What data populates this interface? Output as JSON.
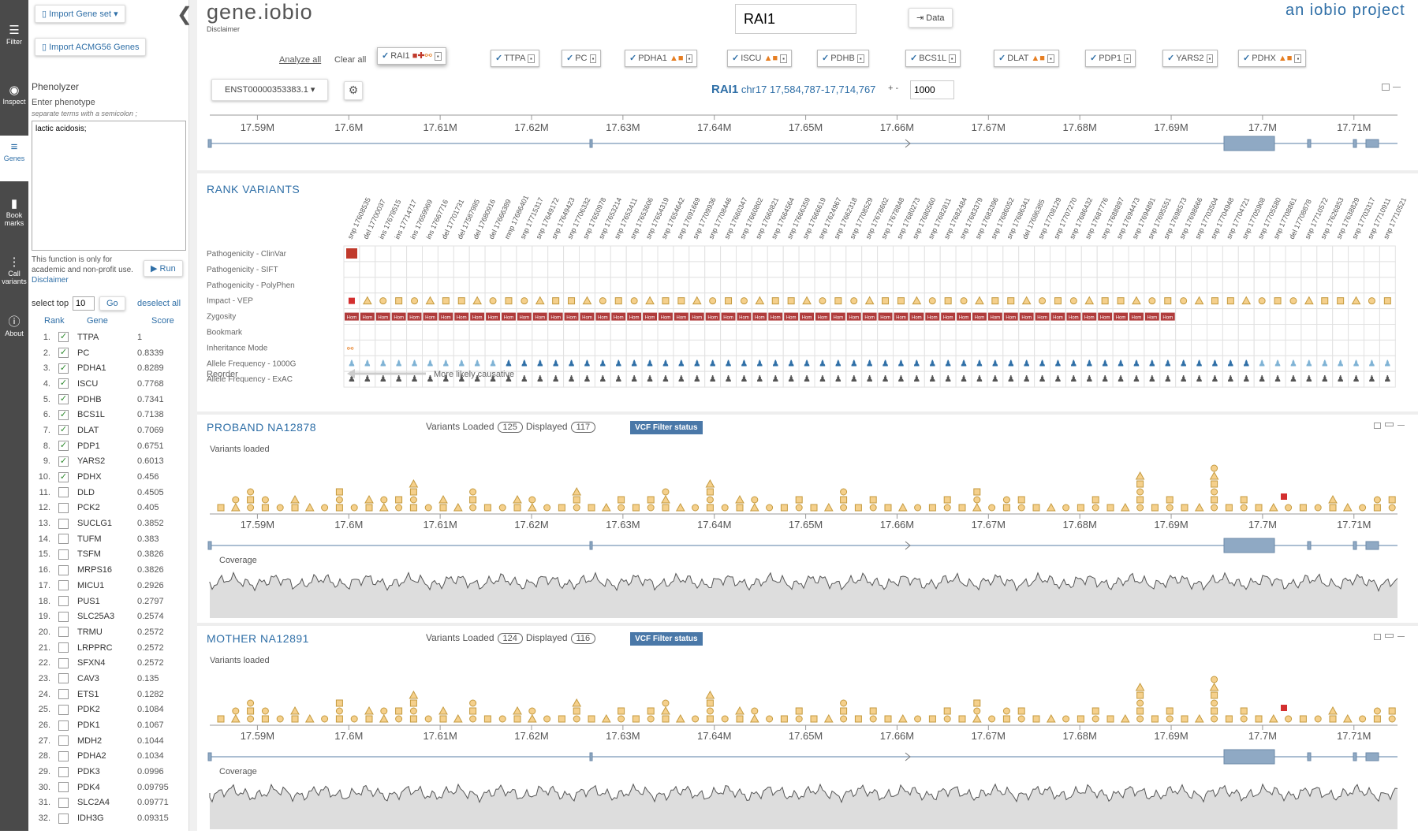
{
  "rail": [
    {
      "icon": "☰",
      "label": "Filter",
      "name": "filter"
    },
    {
      "icon": "◉",
      "label": "Inspect",
      "name": "inspect"
    },
    {
      "icon": "≡",
      "label": "Genes",
      "name": "genes",
      "active": true
    },
    {
      "icon": "▮",
      "label": "Book marks",
      "name": "bookmarks"
    },
    {
      "icon": "⋮",
      "label": "Call variants",
      "name": "call-variants"
    },
    {
      "icon": "ⓘ",
      "label": "About",
      "name": "about"
    }
  ],
  "panel": {
    "import_gene_set": "Import Gene set",
    "import_acmg": "Import ACMG56 Genes",
    "phenolyzer": "Phenolyzer",
    "enter_phenotype": "Enter phenotype",
    "hint": "separate terms with a semicolon ;",
    "phenotype_value": "lactic acidosis;",
    "notice": "This function is only for academic and non-profit use.",
    "disclaimer": "Disclaimer",
    "run": "Run",
    "select_top": "select top",
    "top_value": "10",
    "go": "Go",
    "deselect_all": "deselect all",
    "col_rank": "Rank",
    "col_gene": "Gene",
    "col_score": "Score",
    "genes": [
      {
        "rank": "1.",
        "gene": "TTPA",
        "score": "1",
        "checked": true
      },
      {
        "rank": "2.",
        "gene": "PC",
        "score": "0.8339",
        "checked": true
      },
      {
        "rank": "3.",
        "gene": "PDHA1",
        "score": "0.8289",
        "checked": true
      },
      {
        "rank": "4.",
        "gene": "ISCU",
        "score": "0.7768",
        "checked": true
      },
      {
        "rank": "5.",
        "gene": "PDHB",
        "score": "0.7341",
        "checked": true
      },
      {
        "rank": "6.",
        "gene": "BCS1L",
        "score": "0.7138",
        "checked": true
      },
      {
        "rank": "7.",
        "gene": "DLAT",
        "score": "0.7069",
        "checked": true
      },
      {
        "rank": "8.",
        "gene": "PDP1",
        "score": "0.6751",
        "checked": true
      },
      {
        "rank": "9.",
        "gene": "YARS2",
        "score": "0.6013",
        "checked": true
      },
      {
        "rank": "10.",
        "gene": "PDHX",
        "score": "0.456",
        "checked": true
      },
      {
        "rank": "11.",
        "gene": "DLD",
        "score": "0.4505",
        "checked": false
      },
      {
        "rank": "12.",
        "gene": "PCK2",
        "score": "0.405",
        "checked": false
      },
      {
        "rank": "13.",
        "gene": "SUCLG1",
        "score": "0.3852",
        "checked": false
      },
      {
        "rank": "14.",
        "gene": "TUFM",
        "score": "0.383",
        "checked": false
      },
      {
        "rank": "15.",
        "gene": "TSFM",
        "score": "0.3826",
        "checked": false
      },
      {
        "rank": "16.",
        "gene": "MRPS16",
        "score": "0.3826",
        "checked": false
      },
      {
        "rank": "17.",
        "gene": "MICU1",
        "score": "0.2926",
        "checked": false
      },
      {
        "rank": "18.",
        "gene": "PUS1",
        "score": "0.2797",
        "checked": false
      },
      {
        "rank": "19.",
        "gene": "SLC25A3",
        "score": "0.2574",
        "checked": false
      },
      {
        "rank": "20.",
        "gene": "TRMU",
        "score": "0.2572",
        "checked": false
      },
      {
        "rank": "21.",
        "gene": "LRPPRC",
        "score": "0.2572",
        "checked": false
      },
      {
        "rank": "22.",
        "gene": "SFXN4",
        "score": "0.2572",
        "checked": false
      },
      {
        "rank": "23.",
        "gene": "CAV3",
        "score": "0.135",
        "checked": false
      },
      {
        "rank": "24.",
        "gene": "ETS1",
        "score": "0.1282",
        "checked": false
      },
      {
        "rank": "25.",
        "gene": "PDK2",
        "score": "0.1084",
        "checked": false
      },
      {
        "rank": "26.",
        "gene": "PDK1",
        "score": "0.1067",
        "checked": false
      },
      {
        "rank": "27.",
        "gene": "MDH2",
        "score": "0.1044",
        "checked": false
      },
      {
        "rank": "28.",
        "gene": "PDHA2",
        "score": "0.1034",
        "checked": false
      },
      {
        "rank": "29.",
        "gene": "PDK3",
        "score": "0.0996",
        "checked": false
      },
      {
        "rank": "30.",
        "gene": "PDK4",
        "score": "0.09795",
        "checked": false
      },
      {
        "rank": "31.",
        "gene": "SLC2A4",
        "score": "0.09771",
        "checked": false
      },
      {
        "rank": "32.",
        "gene": "IDH3G",
        "score": "0.09315",
        "checked": false
      }
    ]
  },
  "header": {
    "logo": "gene.iobio",
    "disclaimer": "Disclaimer",
    "search_value": "RAI1",
    "data_button": "Data",
    "brand": "an iobio project",
    "analyze_all": "Analyze all",
    "clear_all": "Clear all"
  },
  "gene_chips": [
    "RAI1",
    "TTPA",
    "PC",
    "PDHA1",
    "ISCU",
    "PDHB",
    "BCS1L",
    "DLAT",
    "PDP1",
    "YARS2",
    "PDHX"
  ],
  "transcript": "ENST00000353383.1",
  "region": {
    "gene": "RAI1",
    "coords": "chr17 17,584,787-17,714,767",
    "pm": "+ -",
    "pad": "1000"
  },
  "axis_ticks": [
    "17.59M",
    "17.6M",
    "17.61M",
    "17.62M",
    "17.63M",
    "17.64M",
    "17.65M",
    "17.66M",
    "17.67M",
    "17.68M",
    "17.69M",
    "17.7M",
    "17.71M"
  ],
  "rank": {
    "title": "RANK VARIANTS",
    "rows": [
      "Pathogenicity - ClinVar",
      "Pathogenicity - SIFT",
      "Pathogenicity - PolyPhen",
      "Impact - VEP",
      "Zygosity",
      "Bookmark",
      "Inheritance Mode",
      "Allele Frequency - 1000G",
      "Allele Frequency - ExAC"
    ],
    "reorder": "Reorder",
    "causative": "More likely causative",
    "zyg_label": "Hom",
    "variants": [
      "snp 17608535",
      "del 17700037",
      "ins 17678515",
      "ins 17714717",
      "ins 17659969",
      "ins 17667716",
      "del 17701731",
      "del 17587985",
      "del 17680916",
      "del 17666389",
      "mnp 17686401",
      "snp 17715317",
      "snp 17649172",
      "snp 17649423",
      "snp 17706332",
      "snp 17650978",
      "snp 17653214",
      "snp 17653411",
      "snp 17653606",
      "snp 17654319",
      "snp 17654642",
      "snp 17691669",
      "snp 17709936",
      "snp 17708446",
      "snp 17660347",
      "snp 17660802",
      "snp 17660821",
      "snp 17664564",
      "snp 17666359",
      "snp 17666619",
      "snp 17624967",
      "snp 17662318",
      "snp 17708529",
      "snp 17678602",
      "snp 17678848",
      "snp 17680273",
      "snp 17680560",
      "snp 17682811",
      "snp 17682484",
      "snp 17683379",
      "snp 17683396",
      "snp 17686052",
      "snp 17686341",
      "del 17686385",
      "snp 17708129",
      "snp 17707270",
      "snp 17686432",
      "snp 17687776",
      "snp 17688897",
      "snp 17694473",
      "snp 17694891",
      "snp 17695551",
      "snp 17698573",
      "snp 17698666",
      "snp 17703504",
      "snp 17704948",
      "snp 17704721",
      "snp 17705908",
      "snp 17705580",
      "snp 17708861",
      "del 17708878",
      "snp 17710572",
      "snp 17626853",
      "snp 17638829",
      "snp 17703317",
      "snp 17710911",
      "snp 17710521"
    ]
  },
  "tracks": [
    {
      "name": "proband",
      "title": "PROBAND NA12878",
      "loaded_label": "Variants Loaded",
      "loaded": "125",
      "displayed_label": "Displayed",
      "displayed": "117",
      "vcf": "VCF Filter status",
      "sub": "Variants loaded",
      "coverage": "Coverage"
    },
    {
      "name": "mother",
      "title": "MOTHER NA12891",
      "loaded_label": "Variants Loaded",
      "loaded": "124",
      "displayed_label": "Displayed",
      "displayed": "116",
      "vcf": "VCF Filter status",
      "sub": "Variants loaded",
      "coverage": "Coverage"
    }
  ],
  "colors": {
    "accent": "#2f6fa7",
    "variant": "#f5d08c",
    "variant_stroke": "#c49a3f",
    "exon": "#8fa9c4",
    "hom": "#b03b3b",
    "clinvar": "#c0392b"
  }
}
